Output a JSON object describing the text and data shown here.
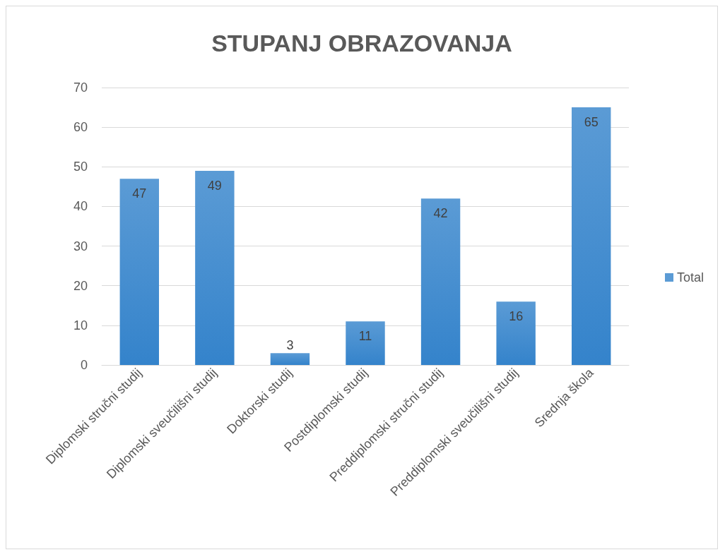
{
  "chart_data": {
    "type": "bar",
    "title": "STUPANJ OBRAZOVANJA",
    "categories": [
      "Diplomski stručni studij",
      "Diplomski sveučilišni studij",
      "Doktorski studij",
      "Postdiplomski studij",
      "Preddiplomski stručni studij",
      "Preddiplomski sveučilišni studij",
      "Srednja škola"
    ],
    "series": [
      {
        "name": "Total",
        "color": "#5b9bd5",
        "values": [
          47,
          49,
          3,
          11,
          42,
          16,
          65
        ]
      }
    ],
    "ylim": [
      0,
      70
    ],
    "yticks": [
      0,
      10,
      20,
      30,
      40,
      50,
      60,
      70
    ],
    "grid": "y",
    "legend": "right",
    "data_labels": true
  }
}
